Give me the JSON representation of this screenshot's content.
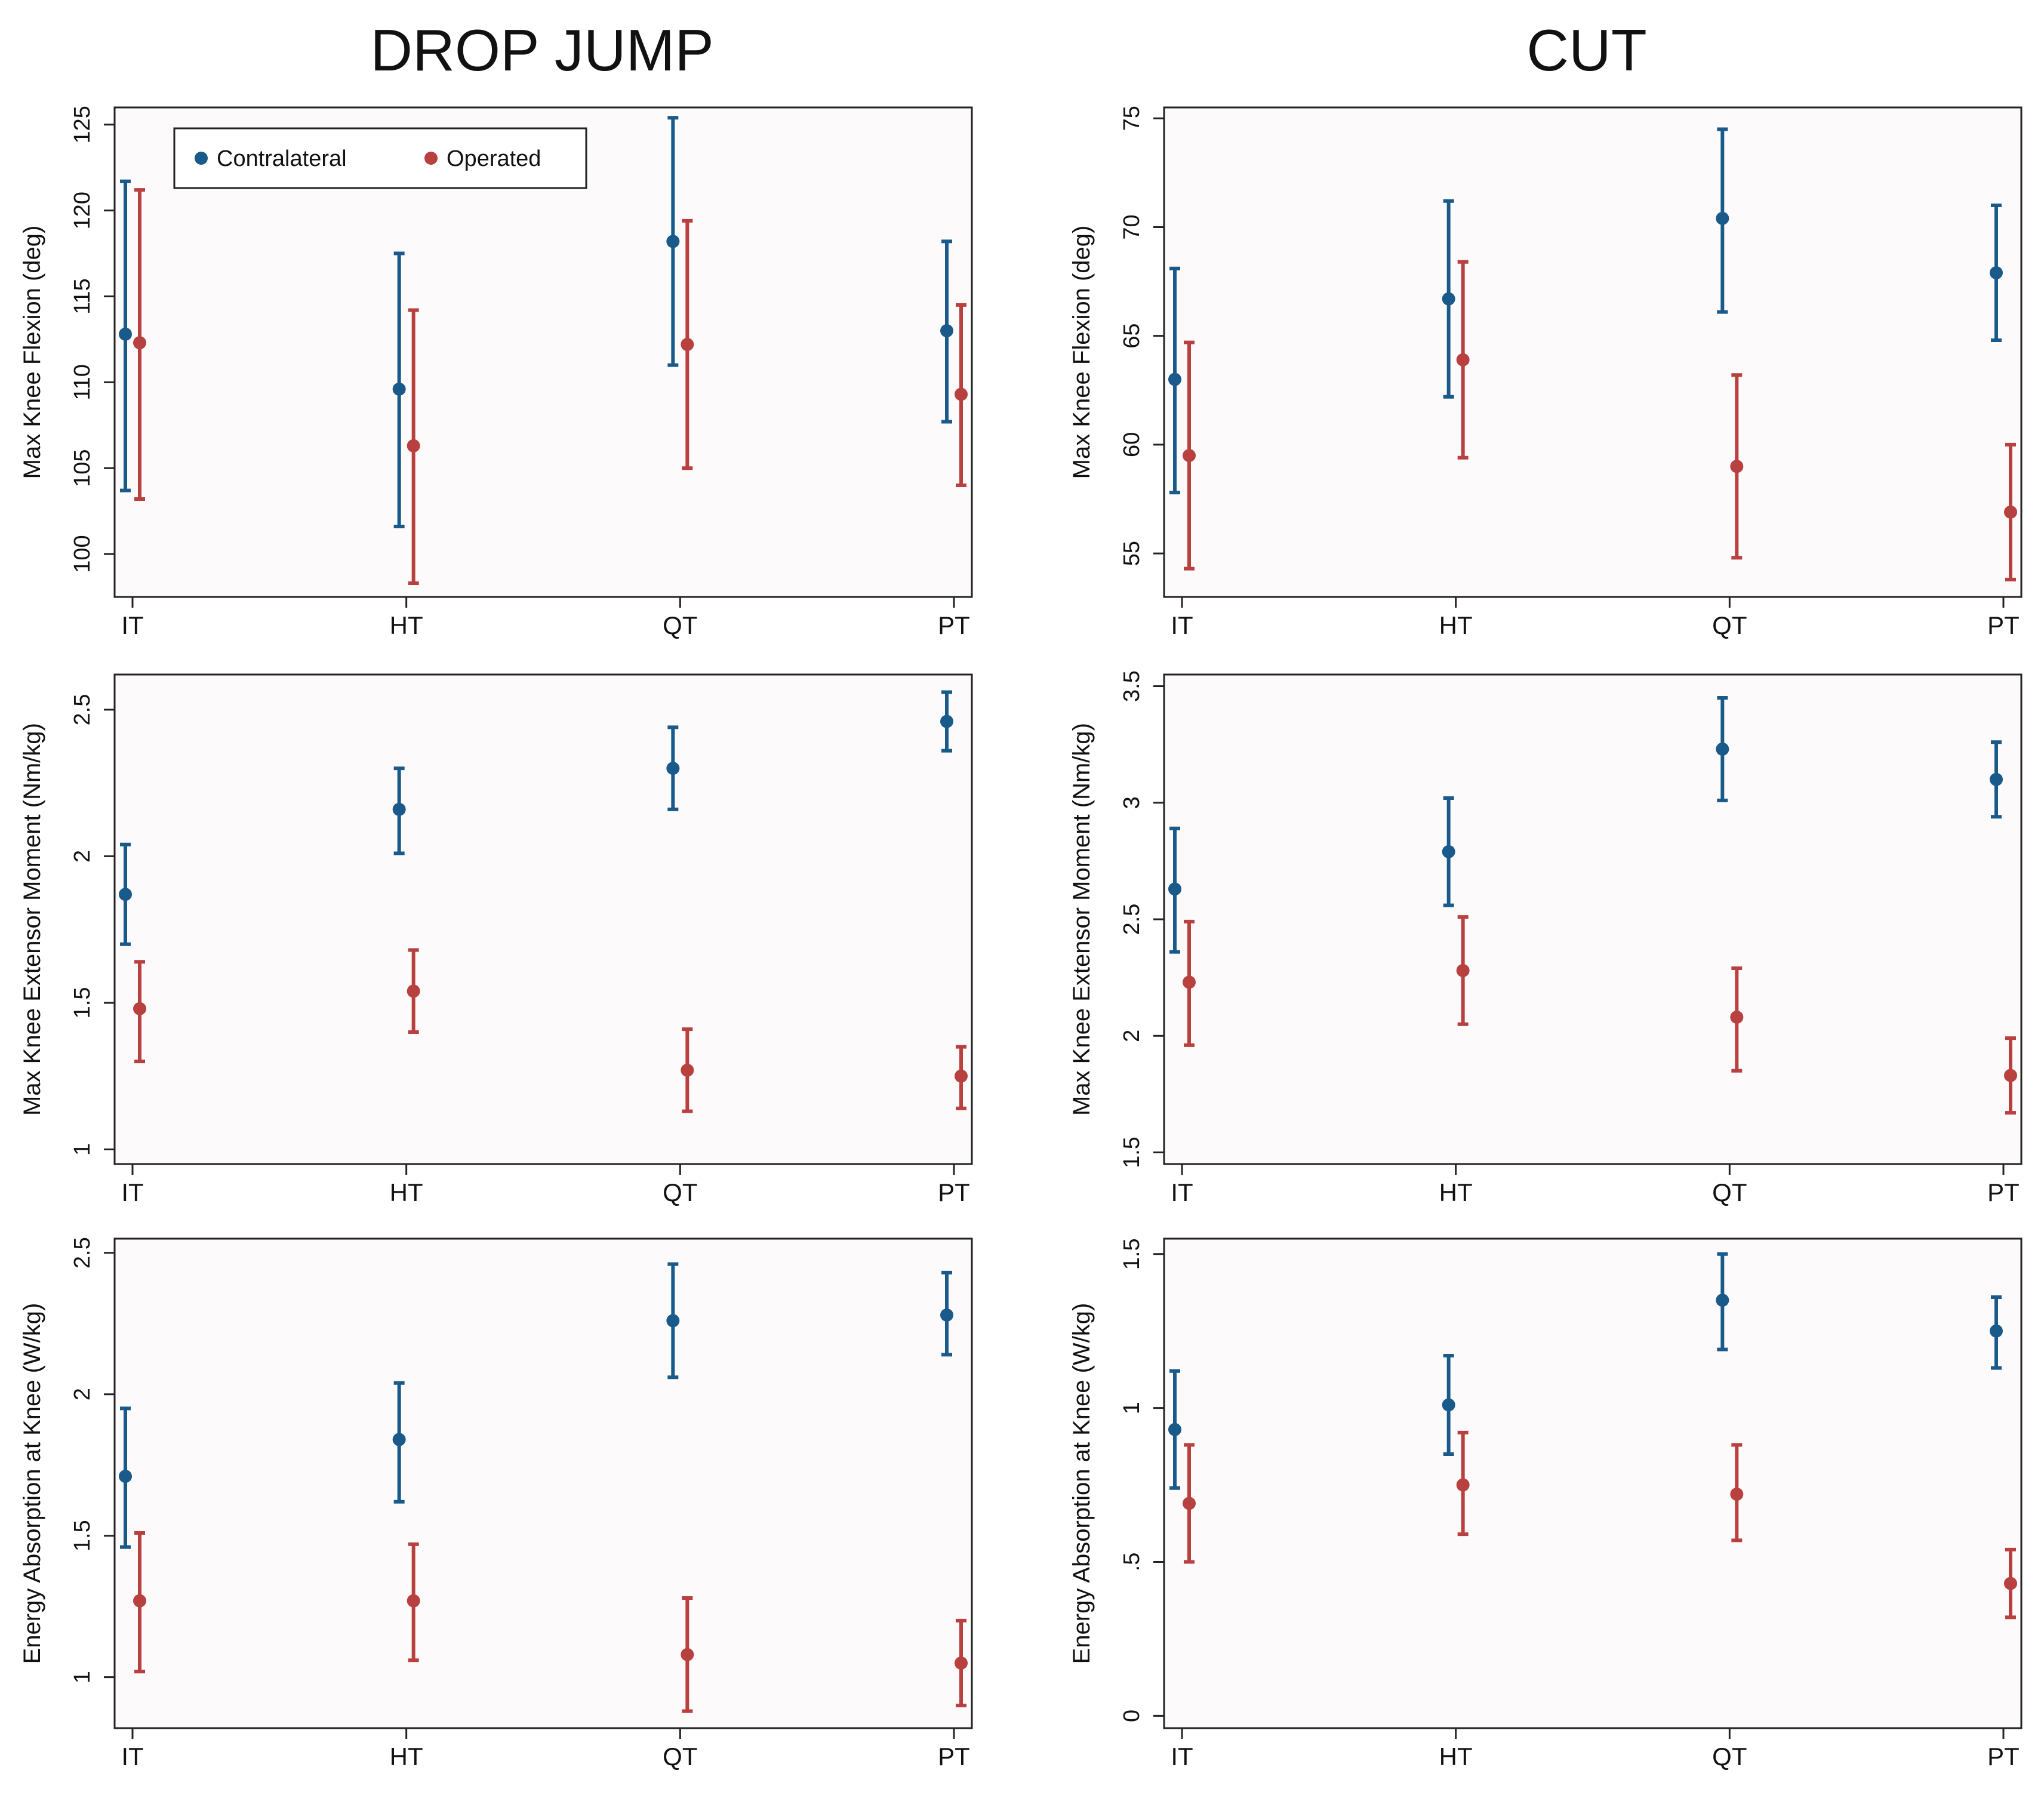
{
  "columns": [
    "DROP JUMP",
    "CUT"
  ],
  "colors": {
    "contralateral": "#1a5a8a",
    "operated": "#b8403f",
    "plot_background": "#fdfafb",
    "frame": "#222222"
  },
  "legend": {
    "position": "top-left",
    "entries": [
      {
        "name": "Contralateral",
        "color": "#1a5a8a"
      },
      {
        "name": "Operated",
        "color": "#b8403f"
      }
    ]
  },
  "chart_data": [
    {
      "type": "scatter",
      "column": "DROP JUMP",
      "ylabel": "Max Knee Flexion (deg)",
      "categories": [
        "IT",
        "HT",
        "QT",
        "PT"
      ],
      "ylim": [
        97.5,
        126
      ],
      "yticks": [
        100,
        105,
        110,
        115,
        120,
        125
      ],
      "grid": false,
      "legend": true,
      "series": [
        {
          "name": "Contralateral",
          "mean": [
            112.8,
            109.6,
            118.2,
            113.0
          ],
          "lower": [
            103.7,
            101.6,
            111.0,
            107.7
          ],
          "upper": [
            121.7,
            117.5,
            125.4,
            118.2
          ]
        },
        {
          "name": "Operated",
          "mean": [
            112.3,
            106.3,
            112.2,
            109.3
          ],
          "lower": [
            103.2,
            98.3,
            105.0,
            104.0
          ],
          "upper": [
            121.2,
            114.2,
            119.4,
            114.5
          ]
        }
      ]
    },
    {
      "type": "scatter",
      "column": "CUT",
      "ylabel": "Max Knee Flexion (deg)",
      "categories": [
        "IT",
        "HT",
        "QT",
        "PT"
      ],
      "ylim": [
        53,
        75.5
      ],
      "yticks": [
        55,
        60,
        65,
        70,
        75
      ],
      "grid": false,
      "legend": false,
      "series": [
        {
          "name": "Contralateral",
          "mean": [
            63.0,
            66.7,
            70.4,
            67.9
          ],
          "lower": [
            57.8,
            62.2,
            66.1,
            64.8
          ],
          "upper": [
            68.1,
            71.2,
            74.5,
            71.0
          ]
        },
        {
          "name": "Operated",
          "mean": [
            59.5,
            63.9,
            59.0,
            56.9
          ],
          "lower": [
            54.3,
            59.4,
            54.8,
            53.8
          ],
          "upper": [
            64.7,
            68.4,
            63.2,
            60.0
          ]
        }
      ]
    },
    {
      "type": "scatter",
      "column": "DROP JUMP",
      "ylabel": "Max Knee Extensor Moment (Nm/kg)",
      "categories": [
        "IT",
        "HT",
        "QT",
        "PT"
      ],
      "ylim": [
        0.95,
        2.62
      ],
      "yticks": [
        1,
        1.5,
        2,
        2.5
      ],
      "ytick_labels": [
        "1",
        "1.5",
        "2",
        "2.5"
      ],
      "grid": false,
      "legend": false,
      "series": [
        {
          "name": "Contralateral",
          "mean": [
            1.87,
            2.16,
            2.3,
            2.46
          ],
          "lower": [
            1.7,
            2.01,
            2.16,
            2.36
          ],
          "upper": [
            2.04,
            2.3,
            2.44,
            2.56
          ]
        },
        {
          "name": "Operated",
          "mean": [
            1.48,
            1.54,
            1.27,
            1.25
          ],
          "lower": [
            1.3,
            1.4,
            1.13,
            1.14
          ],
          "upper": [
            1.64,
            1.68,
            1.41,
            1.35
          ]
        }
      ]
    },
    {
      "type": "scatter",
      "column": "CUT",
      "ylabel": "Max Knee Extensor Moment (Nm/kg)",
      "categories": [
        "IT",
        "HT",
        "QT",
        "PT"
      ],
      "ylim": [
        1.45,
        3.55
      ],
      "yticks": [
        1.5,
        2,
        2.5,
        3,
        3.5
      ],
      "ytick_labels": [
        "1.5",
        "2",
        "2.5",
        "3",
        "3.5"
      ],
      "grid": false,
      "legend": false,
      "series": [
        {
          "name": "Contralateral",
          "mean": [
            2.63,
            2.79,
            3.23,
            3.1
          ],
          "lower": [
            2.36,
            2.56,
            3.01,
            2.94
          ],
          "upper": [
            2.89,
            3.02,
            3.45,
            3.26
          ]
        },
        {
          "name": "Operated",
          "mean": [
            2.23,
            2.28,
            2.08,
            1.83
          ],
          "lower": [
            1.96,
            2.05,
            1.85,
            1.67
          ],
          "upper": [
            2.49,
            2.51,
            2.29,
            1.99
          ]
        }
      ]
    },
    {
      "type": "scatter",
      "column": "DROP JUMP",
      "ylabel": "Energy Absorption at Knee (W/kg)",
      "categories": [
        "IT",
        "HT",
        "QT",
        "PT"
      ],
      "ylim": [
        0.82,
        2.55
      ],
      "yticks": [
        1,
        1.5,
        2,
        2.5
      ],
      "ytick_labels": [
        "1",
        "1.5",
        "2",
        "2.5"
      ],
      "grid": false,
      "legend": false,
      "series": [
        {
          "name": "Contralateral",
          "mean": [
            1.71,
            1.84,
            2.26,
            2.28
          ],
          "lower": [
            1.46,
            1.62,
            2.06,
            2.14
          ],
          "upper": [
            1.95,
            2.04,
            2.46,
            2.43
          ]
        },
        {
          "name": "Operated",
          "mean": [
            1.27,
            1.27,
            1.08,
            1.05
          ],
          "lower": [
            1.02,
            1.06,
            0.88,
            0.9
          ],
          "upper": [
            1.51,
            1.47,
            1.28,
            1.2
          ]
        }
      ]
    },
    {
      "type": "scatter",
      "column": "CUT",
      "ylabel": "Energy Absorption at Knee (W/kg)",
      "categories": [
        "IT",
        "HT",
        "QT",
        "PT"
      ],
      "ylim": [
        -0.04,
        1.55
      ],
      "yticks": [
        0,
        0.5,
        1,
        1.5
      ],
      "ytick_labels": [
        "0",
        ".5",
        "1",
        "1.5"
      ],
      "grid": false,
      "legend": false,
      "series": [
        {
          "name": "Contralateral",
          "mean": [
            0.93,
            1.01,
            1.35,
            1.25
          ],
          "lower": [
            0.74,
            0.85,
            1.19,
            1.13
          ],
          "upper": [
            1.12,
            1.17,
            1.5,
            1.36
          ]
        },
        {
          "name": "Operated",
          "mean": [
            0.69,
            0.75,
            0.72,
            0.43
          ],
          "lower": [
            0.5,
            0.59,
            0.57,
            0.32
          ],
          "upper": [
            0.88,
            0.92,
            0.88,
            0.54
          ]
        }
      ]
    }
  ]
}
